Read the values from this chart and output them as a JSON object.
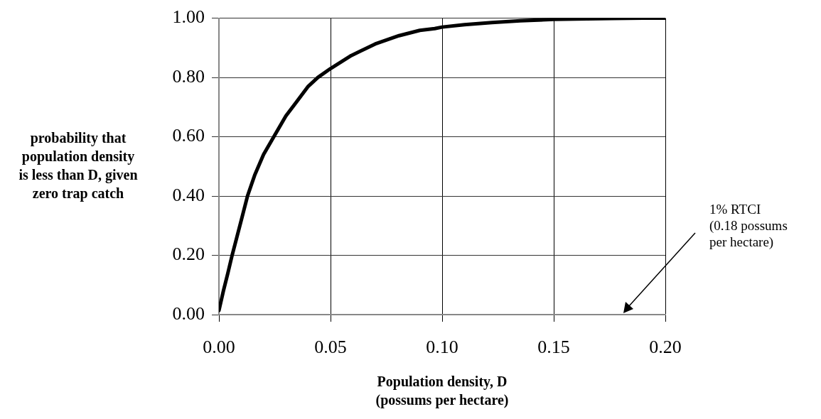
{
  "chart_data": {
    "type": "line",
    "xlabel": "Population density, D (possums per hectare)",
    "ylabel": "probability that population density is less than D, given zero trap catch",
    "series": [
      {
        "color": "#000000",
        "x": [
          0,
          0.002,
          0.004,
          0.0059,
          0.008,
          0.0104,
          0.0128,
          0.016,
          0.02,
          0.0246,
          0.03,
          0.035,
          0.04,
          0.0443,
          0.05,
          0.0593,
          0.07,
          0.0807,
          0.09,
          0.0967,
          0.1,
          0.11,
          0.1223,
          0.135,
          0.15,
          0.165,
          0.176,
          0.19,
          0.2
        ],
        "values": [
          0.014,
          0.08,
          0.14,
          0.2,
          0.26,
          0.33,
          0.4,
          0.47,
          0.54,
          0.6,
          0.67,
          0.72,
          0.77,
          0.8,
          0.83,
          0.874,
          0.913,
          0.941,
          0.959,
          0.965,
          0.97,
          0.978,
          0.985,
          0.991,
          0.996,
          0.998,
          0.999,
          1.0,
          1.0
        ]
      }
    ],
    "xlim": [
      0,
      0.2
    ],
    "xticks": [
      {
        "value": 0,
        "label": "0.00"
      },
      {
        "value": 0.05,
        "label": "0.05"
      },
      {
        "value": 0.1,
        "label": "0.10"
      },
      {
        "value": 0.15,
        "label": "0.15"
      },
      {
        "value": 0.2,
        "label": "0.20"
      }
    ],
    "ylim": [
      0,
      1
    ],
    "yticks": [
      {
        "value": 0,
        "label": "0.00"
      },
      {
        "value": 0.2,
        "label": "0.20"
      },
      {
        "value": 0.4,
        "label": "0.40"
      },
      {
        "value": 0.6,
        "label": "0.60"
      },
      {
        "value": 0.8,
        "label": "0.80"
      },
      {
        "value": 1,
        "label": "1.00"
      }
    ],
    "grid": true,
    "legend": false,
    "marker": "none",
    "line_style": "solid",
    "annotations": [
      "1% RTCI\n(0.18 possums\nper hectare)"
    ]
  }
}
